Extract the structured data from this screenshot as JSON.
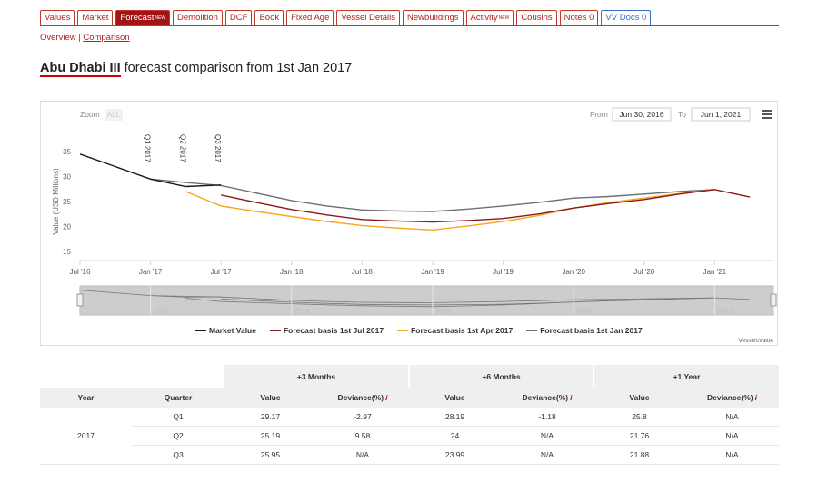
{
  "nav_tabs": [
    {
      "label": "Values"
    },
    {
      "label": "Market"
    },
    {
      "label": "Forecast",
      "badge": "NEW"
    },
    {
      "label": "Demolition"
    },
    {
      "label": "DCF"
    },
    {
      "label": "Book"
    },
    {
      "label": "Fixed Age"
    },
    {
      "label": "Vessel Details"
    },
    {
      "label": "Newbuildings"
    },
    {
      "label": "Activity",
      "badge": "NEW"
    },
    {
      "label": "Cousins"
    },
    {
      "label": "Notes 0"
    },
    {
      "label": "VV Docs 0"
    }
  ],
  "sub_nav": [
    "Overview",
    "Comparison"
  ],
  "header": {
    "vessel": "Abu Dhabi III",
    "title": "forecast comparison from 1st Jan 2017"
  },
  "controls": {
    "zoom": "Zoom",
    "zoom_all": "ALL",
    "from_label": "From",
    "from": "Jun 30, 2016",
    "to_label": "To",
    "to": "Jun 1, 2021"
  },
  "chart_data": {
    "type": "line",
    "y_label": "Value (USD Millions)",
    "x": [
      "2016-07",
      "2016-10",
      "2017-01",
      "2017-04",
      "2017-07",
      "2017-10",
      "2018-01",
      "2018-04",
      "2018-07",
      "2018-10",
      "2019-01",
      "2019-04",
      "2019-07",
      "2019-10",
      "2020-01",
      "2020-04",
      "2020-07",
      "2020-10",
      "2021-01",
      "2021-04"
    ],
    "series": [
      {
        "name": "Market Value",
        "color": "#1a1a1a",
        "values": [
          34.5,
          32,
          29.5,
          28,
          28.3,
          null,
          null,
          null,
          null,
          null,
          null,
          null,
          null,
          null,
          null,
          null,
          null,
          null,
          null,
          null
        ]
      },
      {
        "name": "Forecast basis 1st Jul 2017",
        "color": "#8b1a1a",
        "values": [
          null,
          null,
          null,
          null,
          26.3,
          24.8,
          23.4,
          22.3,
          21.4,
          21.1,
          20.9,
          21.2,
          21.6,
          22.5,
          23.7,
          24.6,
          25.4,
          26.5,
          27.4,
          25.9
        ]
      },
      {
        "name": "Forecast basis 1st Apr 2017",
        "color": "#f5a623",
        "values": [
          null,
          null,
          null,
          27,
          24.1,
          23,
          22,
          21,
          20.2,
          19.7,
          19.3,
          20.1,
          21,
          22.2,
          23.7,
          24.8,
          25.7,
          26.6,
          27.4,
          null
        ]
      },
      {
        "name": "Forecast basis 1st Jan 2017",
        "color": "#6e6e6e",
        "values": [
          null,
          null,
          29.5,
          28.8,
          28.2,
          26.7,
          25.2,
          24.1,
          23.3,
          23.1,
          23,
          23.5,
          24.1,
          24.8,
          25.7,
          26,
          26.5,
          27,
          27.4,
          null
        ]
      }
    ],
    "xlim": [
      "2016-07",
      "2021-06"
    ],
    "xticks": [
      {
        "value": "2016-07",
        "label": "Jul '16"
      },
      {
        "value": "2017-01",
        "label": "Jan '17"
      },
      {
        "value": "2017-07",
        "label": "Jul '17"
      },
      {
        "value": "2018-01",
        "label": "Jan '18"
      },
      {
        "value": "2018-07",
        "label": "Jul '18"
      },
      {
        "value": "2019-01",
        "label": "Jan '19"
      },
      {
        "value": "2019-07",
        "label": "Jul '19"
      },
      {
        "value": "2020-01",
        "label": "Jan '20"
      },
      {
        "value": "2020-07",
        "label": "Jul '20"
      },
      {
        "value": "2021-01",
        "label": "Jan '21"
      }
    ],
    "ylim": [
      15,
      35
    ],
    "yticks": [
      15,
      20,
      25,
      30,
      35
    ],
    "annotations": [
      {
        "x": "2017-01",
        "label": "Q1 2017"
      },
      {
        "x": "2017-04",
        "label": "Q2 2017"
      },
      {
        "x": "2017-07",
        "label": "Q3 2017"
      }
    ],
    "navigator_ticks": [
      {
        "value": "2017-01",
        "label": "2017"
      },
      {
        "value": "2018-01",
        "label": "2018"
      },
      {
        "value": "2019-01",
        "label": "2019"
      },
      {
        "value": "2020-01",
        "label": "2020"
      },
      {
        "value": "2021-01",
        "label": "2021"
      }
    ],
    "credit": "VesselsValue"
  },
  "table": {
    "groups": [
      "+3 Months",
      "+6 Months",
      "+1 Year"
    ],
    "columns": [
      "Year",
      "Quarter",
      "Value",
      "Deviance(%)",
      "Value",
      "Deviance(%)",
      "Value",
      "Deviance(%)"
    ],
    "year": "2017",
    "rows": [
      [
        "Q1",
        "29.17",
        "-2.97",
        "28.19",
        "-1.18",
        "25.8",
        "N/A"
      ],
      [
        "Q2",
        "25.19",
        "9.58",
        "24",
        "N/A",
        "21.76",
        "N/A"
      ],
      [
        "Q3",
        "25.95",
        "N/A",
        "23.99",
        "N/A",
        "21.88",
        "N/A"
      ]
    ]
  }
}
